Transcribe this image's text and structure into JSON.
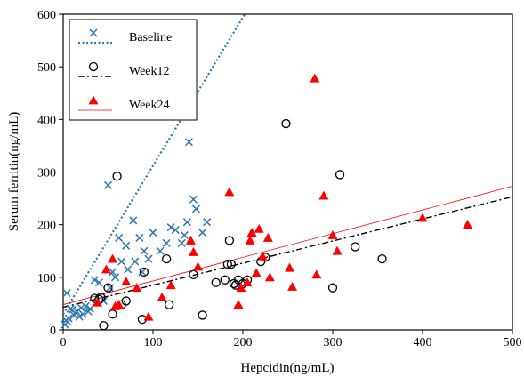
{
  "chart_data": {
    "type": "scatter",
    "xlabel": "Hepcidin(ng/mL)",
    "ylabel": "Serum ferritin(ng/mL)",
    "xlim": [
      0,
      500
    ],
    "ylim": [
      0,
      600
    ],
    "xticks": [
      "0",
      "100",
      "200",
      "300",
      "400",
      "500"
    ],
    "yticks": [
      "0",
      "100",
      "200",
      "300",
      "400",
      "500",
      "600"
    ],
    "grid": false,
    "legend_position": "top-left",
    "series": [
      {
        "name": "Baseline",
        "marker": "x",
        "color": "#2E75B6",
        "trendline": {
          "style": "dotted",
          "color": "#2E75B6",
          "slope": 2.82,
          "intercept": 30
        },
        "points": [
          [
            2,
            10
          ],
          [
            3,
            18
          ],
          [
            4,
            70
          ],
          [
            5,
            15
          ],
          [
            6,
            22
          ],
          [
            8,
            40
          ],
          [
            10,
            38
          ],
          [
            12,
            28
          ],
          [
            15,
            35
          ],
          [
            18,
            25
          ],
          [
            20,
            42
          ],
          [
            22,
            30
          ],
          [
            25,
            45
          ],
          [
            28,
            35
          ],
          [
            30,
            40
          ],
          [
            35,
            95
          ],
          [
            40,
            90
          ],
          [
            45,
            55
          ],
          [
            50,
            275
          ],
          [
            52,
            80
          ],
          [
            55,
            110
          ],
          [
            58,
            100
          ],
          [
            62,
            175
          ],
          [
            65,
            130
          ],
          [
            70,
            160
          ],
          [
            72,
            115
          ],
          [
            78,
            208
          ],
          [
            80,
            130
          ],
          [
            85,
            175
          ],
          [
            88,
            110
          ],
          [
            90,
            150
          ],
          [
            95,
            135
          ],
          [
            100,
            185
          ],
          [
            108,
            150
          ],
          [
            115,
            165
          ],
          [
            120,
            195
          ],
          [
            125,
            190
          ],
          [
            132,
            165
          ],
          [
            135,
            180
          ],
          [
            138,
            205
          ],
          [
            140,
            357
          ],
          [
            145,
            248
          ],
          [
            148,
            230
          ],
          [
            155,
            185
          ],
          [
            160,
            205
          ]
        ]
      },
      {
        "name": "Week12",
        "marker": "o",
        "color": "#000000",
        "trendline": {
          "style": "dash-dot",
          "color": "#000000",
          "slope": 0.42,
          "intercept": 43
        },
        "points": [
          [
            35,
            60
          ],
          [
            40,
            58
          ],
          [
            42,
            62
          ],
          [
            45,
            8
          ],
          [
            50,
            80
          ],
          [
            55,
            30
          ],
          [
            60,
            292
          ],
          [
            65,
            48
          ],
          [
            70,
            55
          ],
          [
            88,
            20
          ],
          [
            90,
            110
          ],
          [
            115,
            135
          ],
          [
            118,
            48
          ],
          [
            145,
            105
          ],
          [
            155,
            28
          ],
          [
            170,
            90
          ],
          [
            180,
            95
          ],
          [
            183,
            125
          ],
          [
            185,
            170
          ],
          [
            187,
            125
          ],
          [
            190,
            88
          ],
          [
            192,
            85
          ],
          [
            195,
            95
          ],
          [
            200,
            88
          ],
          [
            205,
            95
          ],
          [
            220,
            130
          ],
          [
            225,
            138
          ],
          [
            248,
            392
          ],
          [
            300,
            80
          ],
          [
            308,
            295
          ],
          [
            325,
            158
          ],
          [
            355,
            135
          ]
        ]
      },
      {
        "name": "Week24",
        "marker": "triangle",
        "color": "#FF0000",
        "trendline": {
          "style": "solid",
          "color": "#FF0000",
          "slope": 0.45,
          "intercept": 48
        },
        "points": [
          [
            38,
            52
          ],
          [
            48,
            115
          ],
          [
            55,
            135
          ],
          [
            58,
            45
          ],
          [
            62,
            48
          ],
          [
            70,
            92
          ],
          [
            82,
            80
          ],
          [
            95,
            25
          ],
          [
            110,
            62
          ],
          [
            120,
            85
          ],
          [
            142,
            170
          ],
          [
            145,
            148
          ],
          [
            150,
            120
          ],
          [
            185,
            262
          ],
          [
            195,
            48
          ],
          [
            198,
            80
          ],
          [
            205,
            90
          ],
          [
            208,
            170
          ],
          [
            210,
            185
          ],
          [
            215,
            108
          ],
          [
            218,
            192
          ],
          [
            222,
            140
          ],
          [
            228,
            175
          ],
          [
            230,
            100
          ],
          [
            252,
            118
          ],
          [
            255,
            82
          ],
          [
            280,
            478
          ],
          [
            282,
            105
          ],
          [
            290,
            255
          ],
          [
            300,
            180
          ],
          [
            305,
            150
          ],
          [
            400,
            213
          ],
          [
            450,
            200
          ]
        ]
      }
    ]
  }
}
